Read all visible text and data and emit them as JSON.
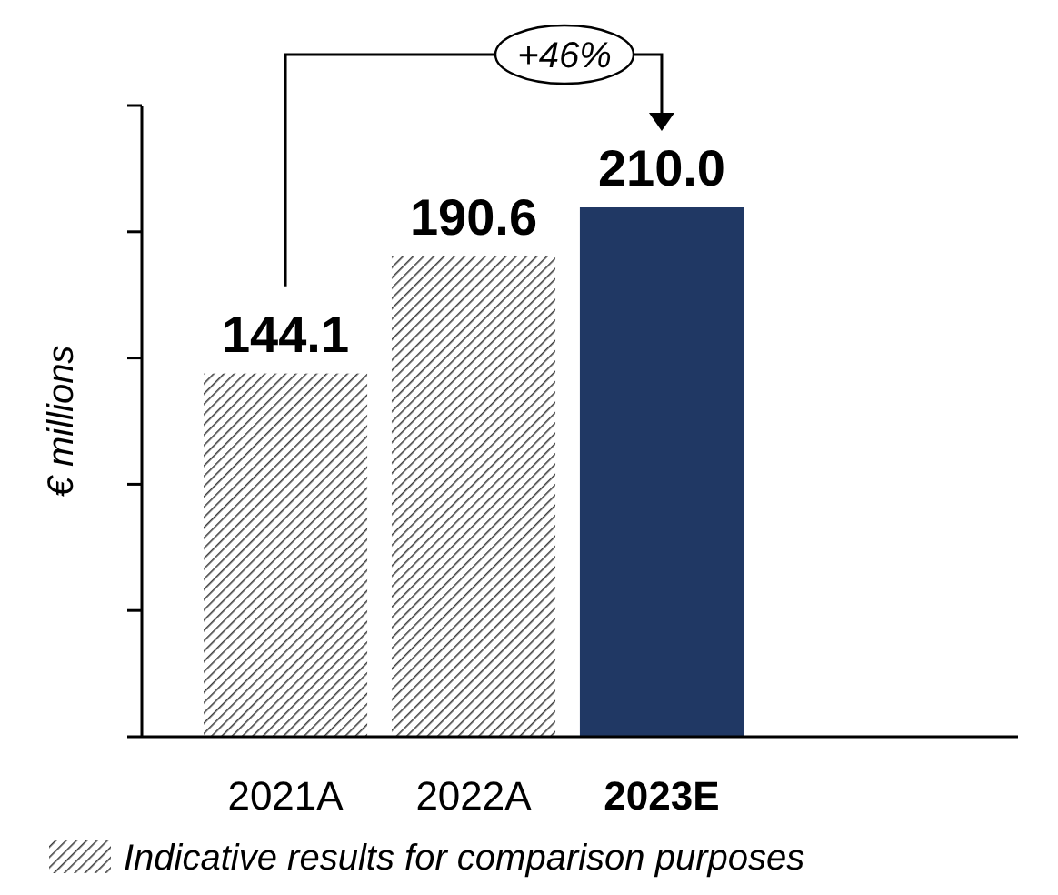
{
  "chart_data": {
    "type": "bar",
    "ylabel": "€ millions",
    "categories": [
      "2021A",
      "2022A",
      "2023E"
    ],
    "series": [
      {
        "name": "Indicative results for comparison purposes",
        "color": "#404040",
        "values": [
          144.1,
          190.6,
          null
        ],
        "value_labels": [
          "144.1",
          "190.6",
          null
        ]
      },
      {
        "color": "#203864",
        "values": [
          null,
          null,
          210.0
        ],
        "value_labels": [
          null,
          null,
          "210.0"
        ]
      }
    ],
    "tick_labels": "x",
    "legend": "bottom",
    "annotations": [
      "+46%"
    ]
  }
}
